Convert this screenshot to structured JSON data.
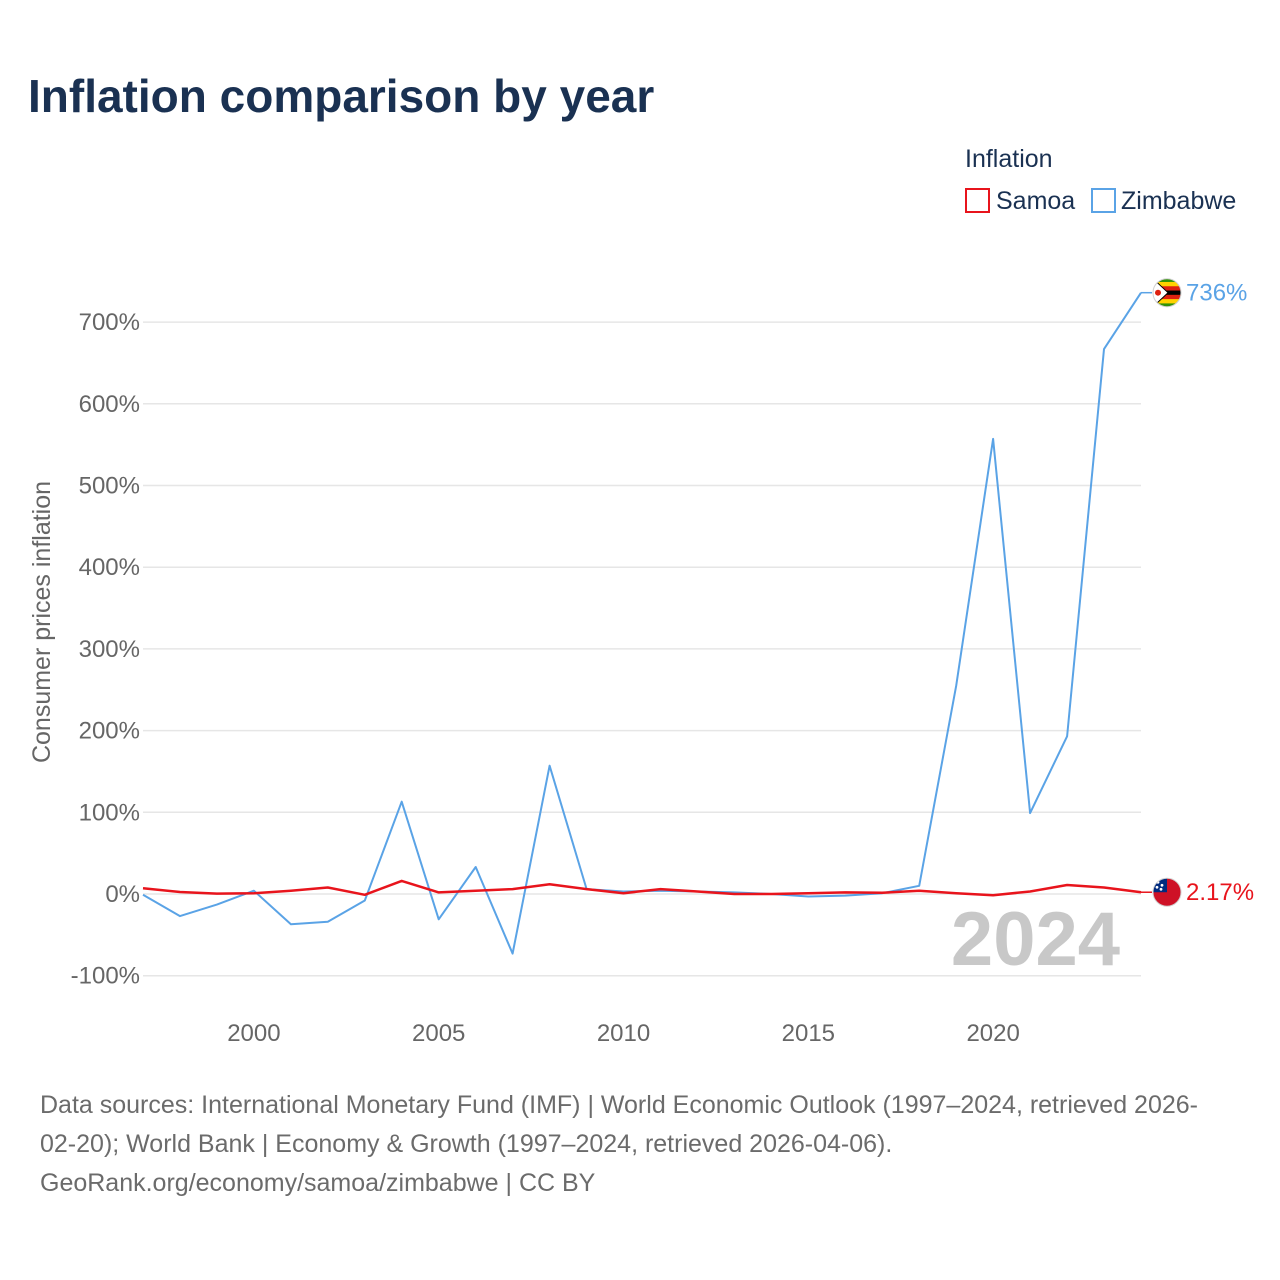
{
  "chart_data": {
    "type": "line",
    "title": "Inflation comparison by year",
    "ylabel": "Consumer prices inflation",
    "xlabel": "",
    "legend_title": "Inflation",
    "legend_position": "top-right",
    "x": [
      1997,
      1998,
      1999,
      2000,
      2001,
      2002,
      2003,
      2004,
      2005,
      2006,
      2007,
      2008,
      2009,
      2010,
      2011,
      2012,
      2013,
      2014,
      2015,
      2016,
      2017,
      2018,
      2019,
      2020,
      2021,
      2022,
      2023,
      2024
    ],
    "series": [
      {
        "name": "Samoa",
        "color": "#e8141c",
        "flag_icon": "samoa-flag-icon",
        "end_label": "2.17%",
        "values": [
          7,
          2.5,
          0.5,
          1,
          4,
          8,
          -1,
          16,
          2,
          4,
          6,
          12,
          6,
          1,
          6,
          3,
          0,
          0,
          1,
          2,
          1.5,
          4,
          1,
          -1.5,
          3,
          11,
          8,
          2.17
        ]
      },
      {
        "name": "Zimbabwe",
        "color": "#5aa3e6",
        "flag_icon": "zimbabwe-flag-icon",
        "end_label": "736%",
        "values": [
          -1,
          -27,
          -13,
          4,
          -37,
          -34,
          -8,
          113,
          -31,
          33,
          -73,
          157,
          6,
          3,
          4,
          3,
          2,
          0,
          -3,
          -2,
          1,
          10,
          255,
          557,
          99,
          193,
          667,
          736
        ]
      }
    ],
    "xticks": [
      2000,
      2005,
      2010,
      2015,
      2020
    ],
    "xtick_labels": [
      "2000",
      "2005",
      "2010",
      "2015",
      "2020"
    ],
    "yticks": [
      -100,
      0,
      100,
      200,
      300,
      400,
      500,
      600,
      700
    ],
    "ytick_labels": [
      "-100%",
      "0%",
      "100%",
      "200%",
      "300%",
      "400%",
      "500%",
      "600%",
      "700%"
    ],
    "xlim": [
      1997,
      2024
    ],
    "ylim": [
      -100,
      700
    ],
    "grid": true,
    "current_year_label": "2024"
  },
  "source": {
    "line1": "Data sources: International Monetary Fund (IMF) | World Economic Outlook (1997–2024, retrieved 2026-",
    "line2": "02-20); World Bank | Economy & Growth (1997–2024, retrieved 2026-04-06).",
    "line3": "GeoRank.org/economy/samoa/zimbabwe | CC BY"
  }
}
